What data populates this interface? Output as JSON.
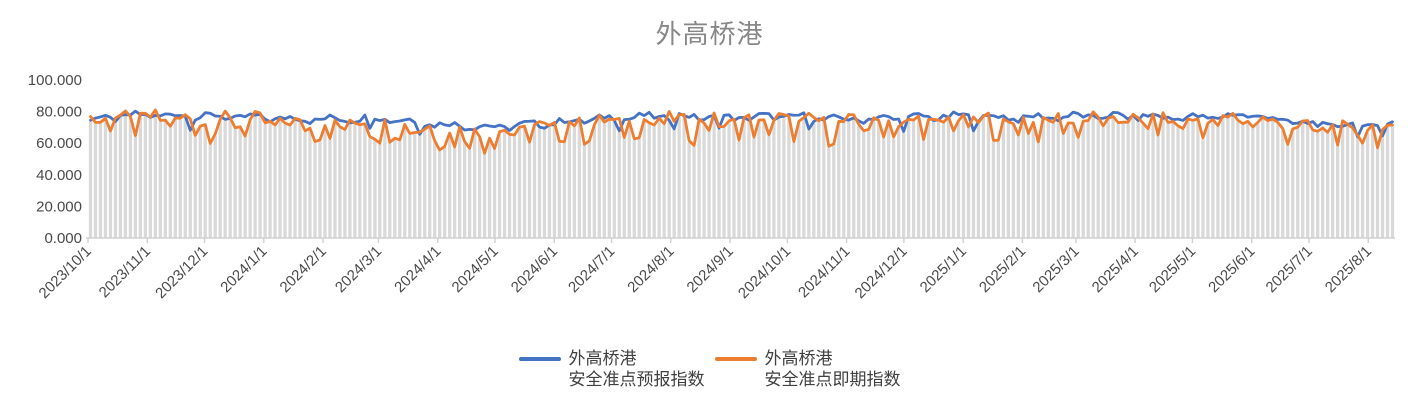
{
  "chart_data": {
    "type": "line",
    "title": "外高桥港",
    "legend_position": "bottom",
    "grid": false,
    "y_axis": {
      "tick_labels": [
        "100.000",
        "80.000",
        "60.000",
        "40.000",
        "20.000",
        "0.000"
      ],
      "tick_values": [
        100,
        80,
        60,
        40,
        20,
        0
      ],
      "min": 0,
      "max": 100
    },
    "x_axis": {
      "tick_labels": [
        "2023/10/1",
        "2023/11/1",
        "2023/12/1",
        "2024/1/1",
        "2024/2/1",
        "2024/3/1",
        "2024/4/1",
        "2024/5/1",
        "2024/6/1",
        "2024/7/1",
        "2024/8/1",
        "2024/9/1",
        "2024/10/1",
        "2024/11/1",
        "2024/12/1",
        "2025/1/1",
        "2025/2/1",
        "2025/3/1",
        "2025/4/1",
        "2025/5/1",
        "2025/6/1",
        "2025/7/1",
        "2025/8/1"
      ],
      "tick_day_offsets": [
        0,
        31,
        61,
        92,
        123,
        152,
        183,
        213,
        244,
        274,
        305,
        336,
        366,
        397,
        427,
        458,
        489,
        517,
        548,
        578,
        609,
        639,
        670
      ],
      "total_days": 684,
      "rotation_deg": -45
    },
    "num_points": 262,
    "series": [
      {
        "name": "外高桥港安全准点预报指数",
        "name_lines": [
          "外高桥港",
          "安全准点预报指数"
        ],
        "color": "#4472C4",
        "monthly_values": [
          75,
          78,
          77,
          76,
          75,
          76,
          72,
          70,
          73,
          76,
          77,
          76,
          77,
          75,
          76,
          77,
          76,
          77,
          77,
          76,
          78,
          72,
          71,
          72
        ],
        "noise_amp": 2.0,
        "wave_amp": 1.3,
        "wave_freq": 0.8,
        "dip_threshold": -0.92,
        "dip_extra": 6,
        "seed": 7
      },
      {
        "name": "外高桥港安全准点即期指数",
        "name_lines": [
          "外高桥港",
          "安全准点即期指数"
        ],
        "color": "#ED7D31",
        "monthly_values": [
          76,
          75,
          74,
          73,
          71,
          73,
          68,
          66,
          71,
          73,
          74,
          73,
          74,
          72,
          73,
          74,
          73,
          74,
          74,
          73,
          75,
          69,
          68,
          69
        ],
        "noise_amp": 5.0,
        "wave_amp": 2.2,
        "wave_freq": 0.9,
        "dip_threshold": -0.58,
        "dip_extra": 8,
        "seed": 3
      }
    ],
    "droplines": {
      "color": "#D9D9D9"
    },
    "colors": {
      "axis_line": "#D0D0D0",
      "axis_text": "#4a4a4a",
      "title_text": "#878787",
      "legend_text": "#404040",
      "background": "#ffffff"
    }
  }
}
